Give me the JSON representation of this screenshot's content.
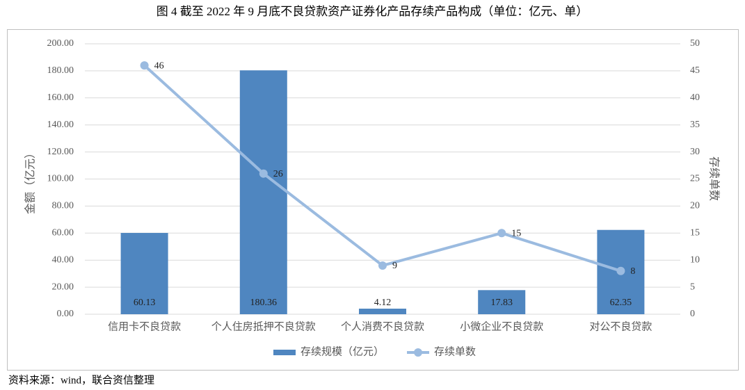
{
  "chart_data": {
    "type": "bar",
    "title": "图 4   截至 2022 年 9 月底不良贷款资产证券化产品存续产品构成（单位：亿元、单）",
    "source": "资料来源：wind，联合资信整理",
    "y_label": "金额（亿元）",
    "y2_label": "存续单数",
    "categories": [
      "信用卡不良贷款",
      "个人住房抵押不良贷款",
      "个人消费不良贷款",
      "小微企业不良贷款",
      "对公不良贷款"
    ],
    "series": [
      {
        "name": "存续规模（亿元）",
        "type": "bar",
        "color": "#4f86c0",
        "values": [
          60.13,
          180.36,
          4.12,
          17.83,
          62.35
        ]
      },
      {
        "name": "存续单数",
        "type": "line",
        "color": "#9bbbe0",
        "axis": "y2",
        "values": [
          46,
          26,
          9,
          15,
          8
        ]
      }
    ],
    "ylim": [
      0,
      200
    ],
    "yticks": [
      {
        "value": 0,
        "label": "0.00"
      },
      {
        "value": 20,
        "label": "20.00"
      },
      {
        "value": 40,
        "label": "40.00"
      },
      {
        "value": 60,
        "label": "60.00"
      },
      {
        "value": 80,
        "label": "80.00"
      },
      {
        "value": 100,
        "label": "100.00"
      },
      {
        "value": 120,
        "label": "120.00"
      },
      {
        "value": 140,
        "label": "140.00"
      },
      {
        "value": 160,
        "label": "160.00"
      },
      {
        "value": 180,
        "label": "180.00"
      },
      {
        "value": 200,
        "label": "200.00"
      }
    ],
    "y2lim": [
      0,
      50
    ],
    "y2ticks": [
      0,
      5,
      10,
      15,
      20,
      25,
      30,
      35,
      40,
      45,
      50
    ],
    "grid": true,
    "legend": "bottom"
  }
}
